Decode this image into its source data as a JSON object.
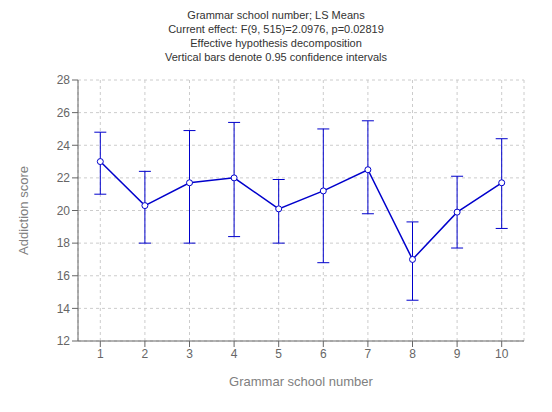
{
  "chart_data": {
    "type": "line",
    "title": "Grammar school number; LS Means\nCurrent effect: F(9, 515)=2.0976, p=0.02819\nEffective hypothesis decomposition\nVertical bars denote 0.95 confidence intervals",
    "x": [
      1,
      2,
      3,
      4,
      5,
      6,
      7,
      8,
      9,
      10
    ],
    "values": [
      23.0,
      20.3,
      21.7,
      22.0,
      20.1,
      21.2,
      22.5,
      17.0,
      19.9,
      21.7
    ],
    "yerr_lower": [
      2.0,
      2.3,
      3.7,
      3.6,
      2.1,
      4.4,
      2.7,
      2.5,
      2.2,
      2.8
    ],
    "yerr_upper": [
      1.8,
      2.1,
      3.2,
      3.4,
      1.8,
      3.8,
      3.0,
      2.3,
      2.2,
      2.7
    ],
    "xlabel": "Grammar school number",
    "ylabel": "Addiction score",
    "xlim": [
      0.5,
      10.5
    ],
    "ylim": [
      12,
      28
    ],
    "xticks": [
      1,
      2,
      3,
      4,
      5,
      6,
      7,
      8,
      9,
      10
    ],
    "yticks": [
      12,
      14,
      16,
      18,
      20,
      22,
      24,
      26,
      28
    ],
    "color": "#0000CC",
    "marker": "o",
    "line_style": "solid",
    "grid": true
  }
}
